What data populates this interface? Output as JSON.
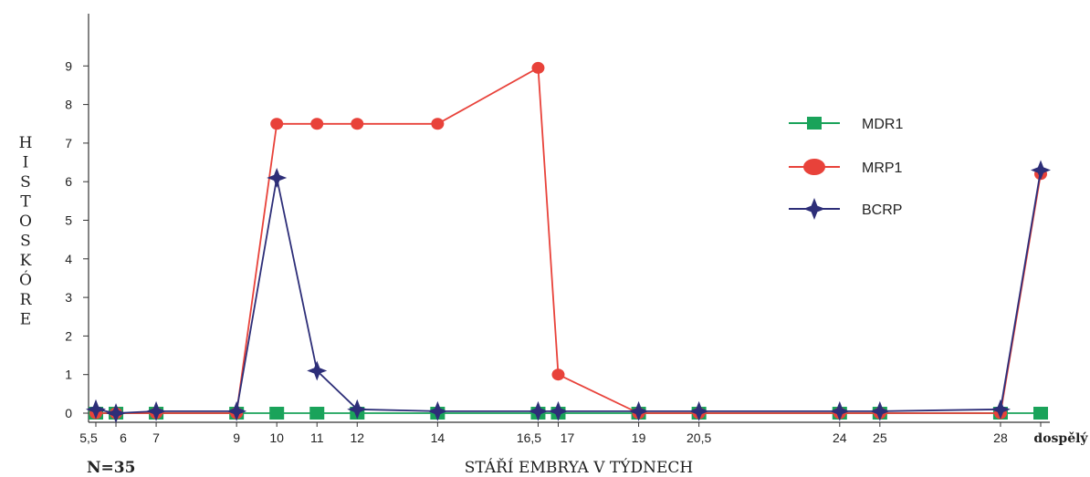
{
  "chart_data": {
    "type": "line",
    "title": "",
    "xlabel": "STÁŘÍ EMBRYA V TÝDNECH",
    "ylabel": "HISTOSKÓRE",
    "ylim": [
      0,
      9
    ],
    "yticks": [
      "0",
      "1",
      "2",
      "3",
      "4",
      "5",
      "6",
      "7",
      "8",
      "9"
    ],
    "categories": [
      "5,5",
      "6",
      "7",
      "9",
      "10",
      "11",
      "12",
      "14",
      "16,5",
      "17",
      "19",
      "20,5",
      "24",
      "25",
      "28",
      "dospělý"
    ],
    "category_labels": [
      "5,5",
      "6",
      "7",
      "9",
      "10",
      "11",
      "12",
      "14",
      "16,5",
      "17",
      "19",
      "20,5",
      "24",
      "25",
      "28",
      "dospělý"
    ],
    "x": [
      5.5,
      6,
      7,
      9,
      10,
      11,
      12,
      14,
      16.5,
      17,
      19,
      20.5,
      24,
      25,
      28,
      29
    ],
    "note": "N=35",
    "legend_position": "right",
    "series": [
      {
        "name": "MDR1",
        "color": "#1aa35a",
        "marker": "square",
        "values": [
          0,
          0,
          0,
          0,
          0,
          0,
          0,
          0,
          0,
          0,
          0,
          0,
          0,
          0,
          0,
          0
        ]
      },
      {
        "name": "MRP1",
        "color": "#e8423a",
        "marker": "circle",
        "values": [
          0,
          0,
          0,
          0,
          7.5,
          7.5,
          7.5,
          7.5,
          8.95,
          1,
          0,
          0,
          0,
          0,
          0,
          6.2
        ]
      },
      {
        "name": "BCRP",
        "color": "#2d2e78",
        "marker": "star",
        "values": [
          0.1,
          0,
          0.05,
          0.05,
          6.1,
          1.1,
          0.1,
          0.05,
          0.05,
          0.05,
          0.05,
          0.05,
          0.05,
          0.05,
          0.1,
          6.3
        ]
      }
    ]
  }
}
